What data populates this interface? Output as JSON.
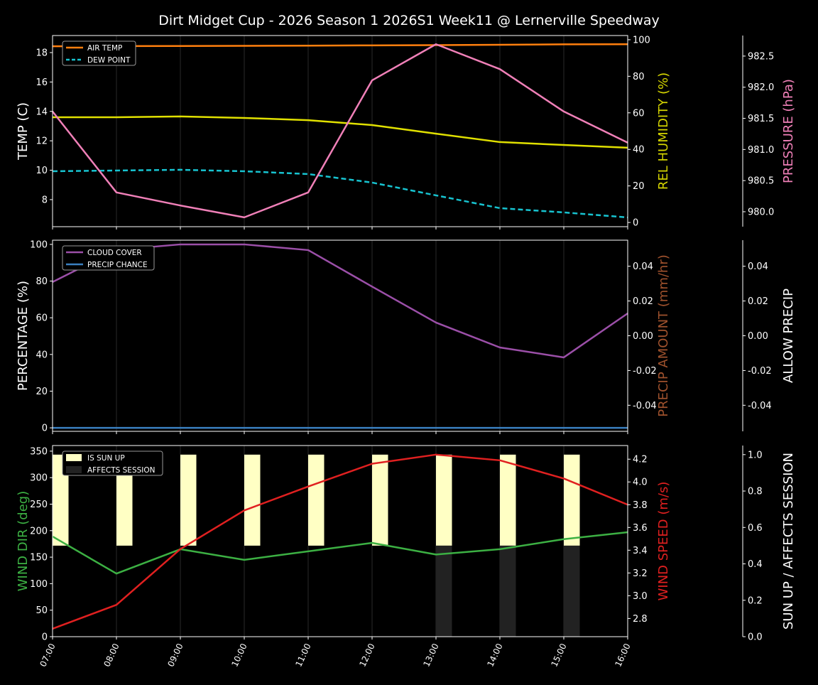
{
  "chart_data": {
    "title": "Dirt Midget Cup - 2026 Season 1 2026S1 Week11 @ Lernerville Speedway",
    "x": [
      "07:00",
      "08:00",
      "09:00",
      "10:00",
      "11:00",
      "12:00",
      "13:00",
      "14:00",
      "15:00",
      "16:00"
    ],
    "grid": "vertical",
    "panels": [
      {
        "type": "line",
        "legend": "top-left",
        "axes": [
          {
            "side": "left",
            "label": "TEMP (C)",
            "color": "#ffffff",
            "ylim": [
              6.16,
              19.16
            ],
            "ticks": [
              8,
              10,
              12,
              14,
              16,
              18
            ]
          },
          {
            "side": "right",
            "label": "REL HUMIDITY (%)",
            "color": "#d4d400",
            "ylim": [
              -2.3,
              102.3
            ],
            "ticks": [
              0,
              20,
              40,
              60,
              80,
              100
            ]
          },
          {
            "side": "right-outer",
            "label": "PRESSURE (hPa)",
            "color": "#f080b8",
            "ylim": [
              979.76,
              982.83
            ],
            "ticks": [
              980.0,
              980.5,
              981.0,
              981.5,
              982.0,
              982.5
            ],
            "tick_format": 1
          }
        ],
        "series": [
          {
            "name": "AIR TEMP",
            "axis": 0,
            "color": "#ff7f0e",
            "dash": false,
            "in_legend": true,
            "values": [
              18.43,
              18.44,
              18.45,
              18.46,
              18.47,
              18.49,
              18.51,
              18.53,
              18.56,
              18.57
            ]
          },
          {
            "name": "DEW POINT",
            "axis": 0,
            "color": "#17c3d0",
            "dash": true,
            "in_legend": true,
            "values": [
              9.93,
              9.98,
              10.03,
              9.93,
              9.74,
              9.16,
              8.29,
              7.42,
              7.13,
              6.79
            ]
          },
          {
            "axis": 1,
            "color": "#e0e000",
            "dash": false,
            "in_legend": false,
            "values": [
              57.6,
              57.6,
              58.0,
              57.2,
              56.0,
              53.3,
              48.6,
              44.0,
              42.4,
              40.9
            ]
          },
          {
            "axis": 2,
            "color": "#f080b8",
            "dash": false,
            "in_legend": false,
            "values": [
              981.61,
              980.31,
              980.1,
              979.91,
              980.31,
              982.11,
              982.69,
              982.29,
              981.61,
              981.11
            ]
          }
        ]
      },
      {
        "type": "line",
        "legend": "top-left",
        "axes": [
          {
            "side": "left",
            "label": "PERCENTAGE (%)",
            "color": "#ffffff",
            "ylim": [
              -1.9,
              102.3
            ],
            "ticks": [
              0,
              20,
              40,
              60,
              80,
              100
            ]
          },
          {
            "side": "right",
            "label": "PRECIP AMOUNT (mm/hr)",
            "color": "#a0522d",
            "ylim": [
              -0.055,
              0.055
            ],
            "ticks": [
              -0.04,
              -0.02,
              0.0,
              0.02,
              0.04
            ],
            "tick_format": 2
          },
          {
            "side": "right-outer",
            "label": "ALLOW PRECIP",
            "color": "#ffffff",
            "ylim": [
              -0.055,
              0.055
            ],
            "ticks": [
              -0.04,
              -0.02,
              0.0,
              0.02,
              0.04
            ],
            "tick_format": 2
          }
        ],
        "series": [
          {
            "name": "CLOUD COVER",
            "axis": 0,
            "color": "#9b4fa8",
            "dash": false,
            "in_legend": true,
            "values": [
              79.5,
              97,
              100,
              100,
              96.9,
              77,
              57.4,
              43.8,
              38.4,
              62.4
            ]
          },
          {
            "name": "PRECIP CHANCE",
            "axis": 0,
            "color": "#3a80c0",
            "dash": false,
            "in_legend": true,
            "values": [
              0,
              0,
              0,
              0,
              0,
              0,
              0,
              0,
              0,
              0
            ]
          }
        ]
      },
      {
        "type": "line+bar",
        "legend": "top-left",
        "axes": [
          {
            "side": "left",
            "label": "WIND DIR (deg)",
            "color": "#3cb043",
            "ylim": [
              0,
              360.6
            ],
            "ticks": [
              0,
              50,
              100,
              150,
              200,
              250,
              300,
              350
            ]
          },
          {
            "side": "right",
            "label": "WIND SPEED (m/s)",
            "color": "#e02020",
            "ylim": [
              2.64,
              4.32
            ],
            "ticks": [
              2.8,
              3.0,
              3.2,
              3.4,
              3.6,
              3.8,
              4.0,
              4.2
            ],
            "tick_format": 1
          },
          {
            "side": "right-outer",
            "label": "SUN UP / AFFECTS SESSION",
            "color": "#ffffff",
            "ylim": [
              0,
              1.05
            ],
            "ticks": [
              0.0,
              0.2,
              0.4,
              0.6,
              0.8,
              1.0
            ],
            "tick_format": 1
          }
        ],
        "bars": [
          {
            "name": "IS SUN UP",
            "axis": 2,
            "color": "#ffffc4",
            "base": 0.5,
            "values": [
              0.5,
              0.5,
              0.5,
              0.5,
              0.5,
              0.5,
              0.5,
              0.5,
              0.5,
              0
            ]
          },
          {
            "name": "AFFECTS SESSION",
            "axis": 2,
            "color": "#222222",
            "base": 0,
            "values": [
              0,
              0,
              0,
              0,
              0,
              0,
              0.5,
              0.5,
              0.5,
              0
            ]
          }
        ],
        "series": [
          {
            "axis": 0,
            "color": "#3cb043",
            "dash": false,
            "in_legend": false,
            "values": [
              189,
              119,
              165,
              145,
              161,
              177,
              155,
              165,
              184,
              197
            ]
          },
          {
            "axis": 1,
            "color": "#e02020",
            "dash": false,
            "in_legend": false,
            "values": [
              2.71,
              2.92,
              3.41,
              3.75,
              3.96,
              4.16,
              4.24,
              4.19,
              4.03,
              3.8
            ]
          }
        ]
      }
    ]
  }
}
